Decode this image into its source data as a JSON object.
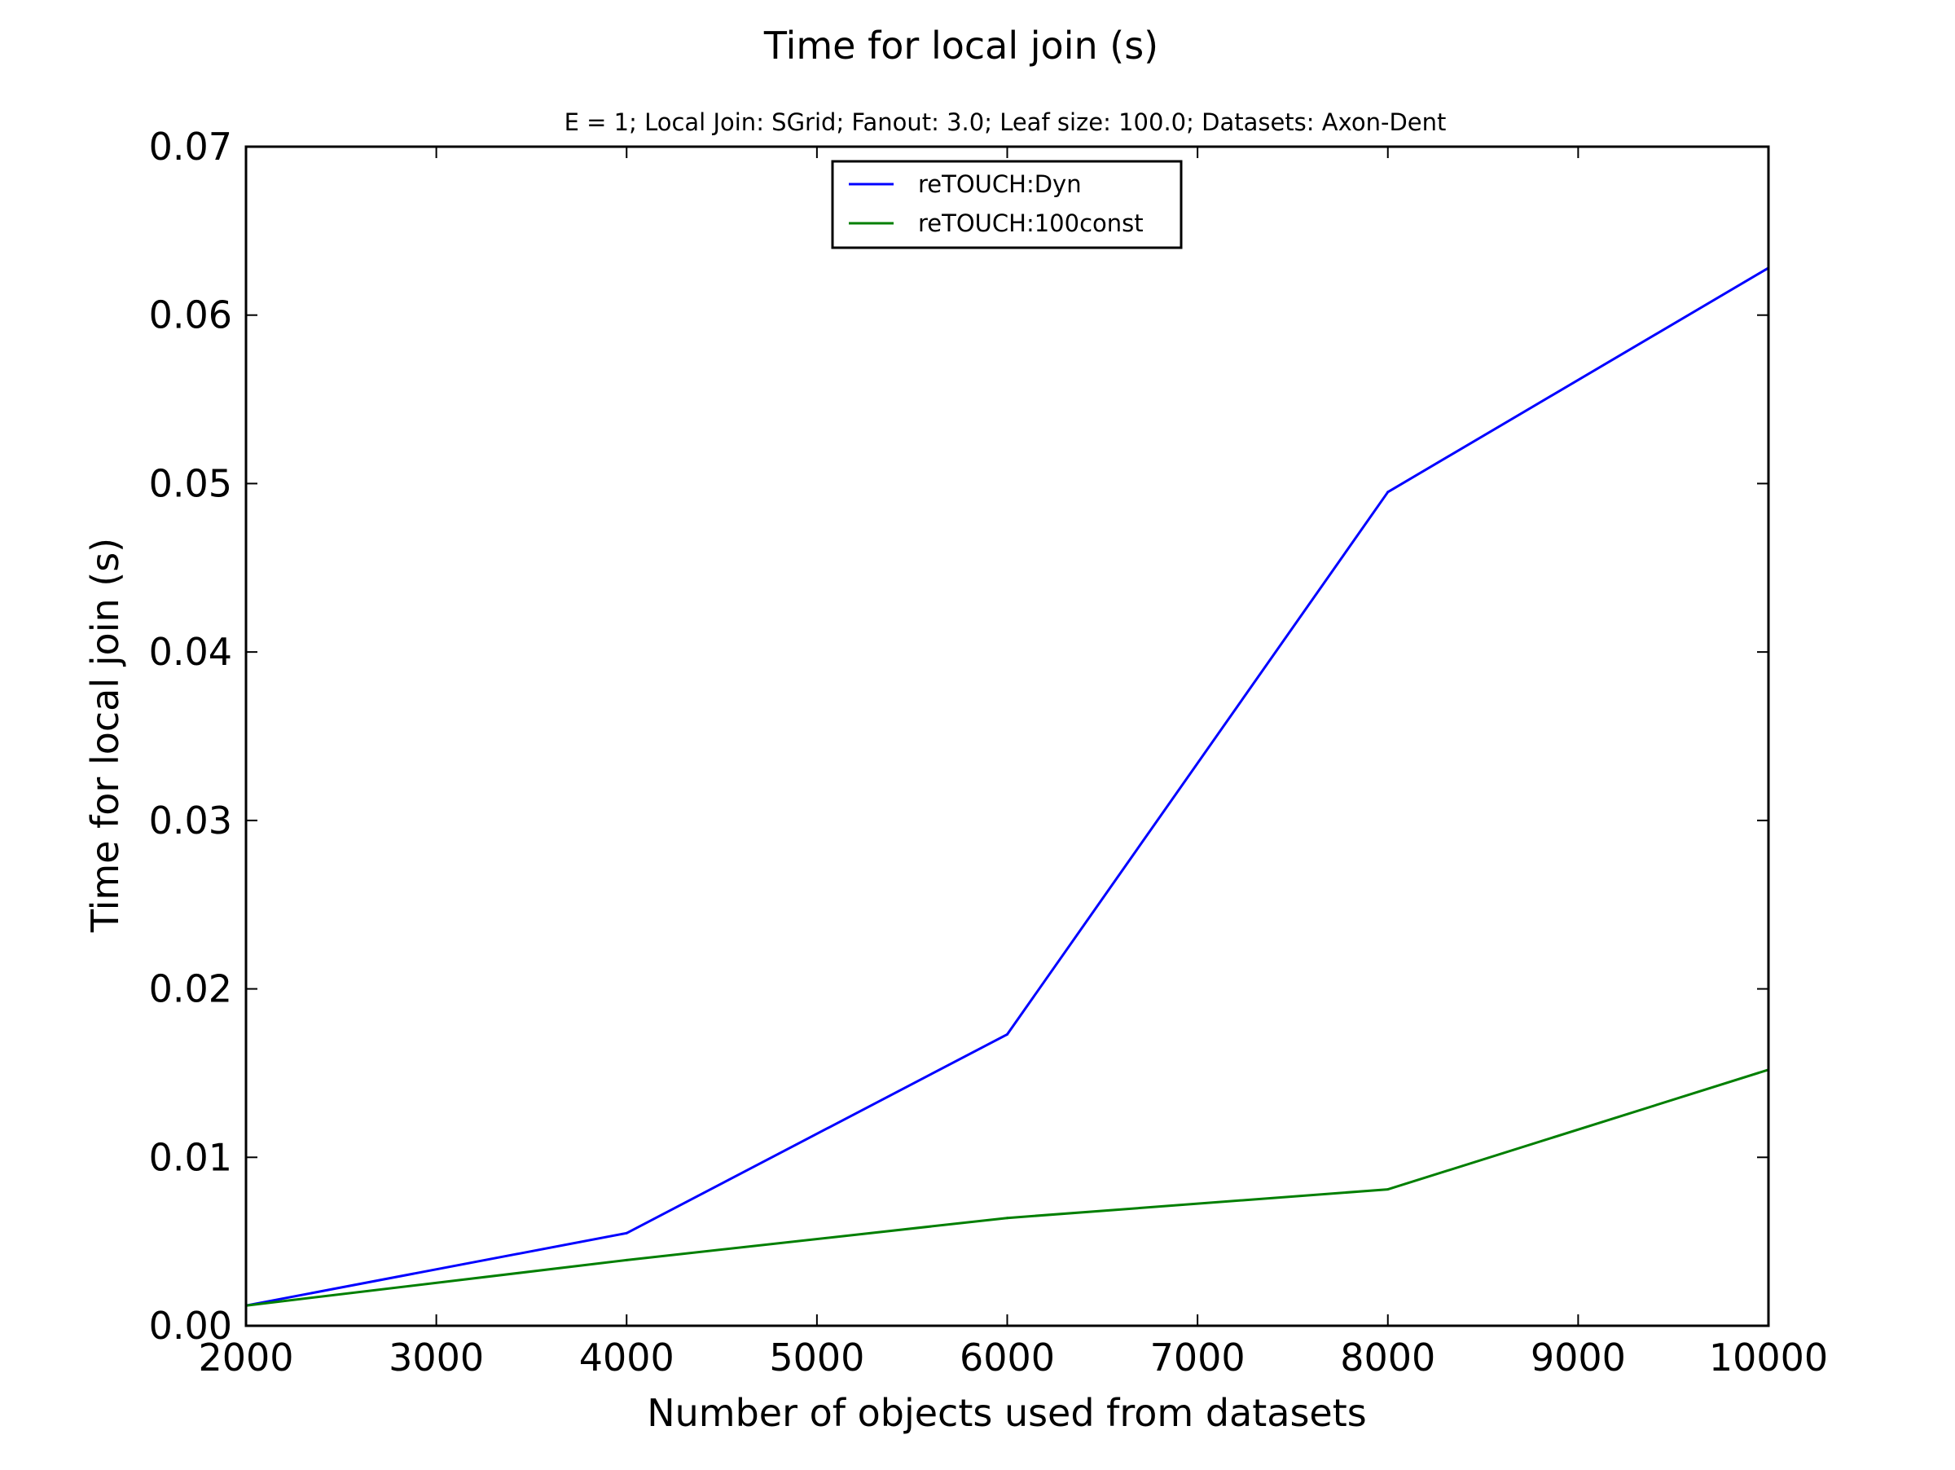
{
  "chart_data": {
    "type": "line",
    "title": "Time for local join (s)",
    "subtitle": "E = 1; Local Join: SGrid; Fanout: 3.0; Leaf size: 100.0; Datasets: Axon-Dent",
    "xlabel": "Number of objects used from datasets",
    "ylabel": "Time for local join (s)",
    "xlim": [
      2000,
      10000
    ],
    "ylim": [
      0,
      0.07
    ],
    "x_ticks": [
      2000,
      3000,
      4000,
      5000,
      6000,
      7000,
      8000,
      9000,
      10000
    ],
    "x_tick_labels": [
      "2000",
      "3000",
      "4000",
      "5000",
      "6000",
      "7000",
      "8000",
      "9000",
      "10000"
    ],
    "y_ticks": [
      0,
      0.01,
      0.02,
      0.03,
      0.04,
      0.05,
      0.06,
      0.07
    ],
    "y_tick_labels": [
      "0.00",
      "0.01",
      "0.02",
      "0.03",
      "0.04",
      "0.05",
      "0.06",
      "0.07"
    ],
    "x": [
      2000,
      4000,
      6000,
      8000,
      10000
    ],
    "series": [
      {
        "name": "reTOUCH:Dyn",
        "color": "#0000ff",
        "values": [
          0.0012,
          0.0055,
          0.0173,
          0.0495,
          0.0628
        ]
      },
      {
        "name": "reTOUCH:100const",
        "color": "#007f00",
        "values": [
          0.0012,
          0.0039,
          0.0064,
          0.0081,
          0.0152
        ]
      }
    ],
    "grid": false,
    "legend_position": "top-center"
  }
}
